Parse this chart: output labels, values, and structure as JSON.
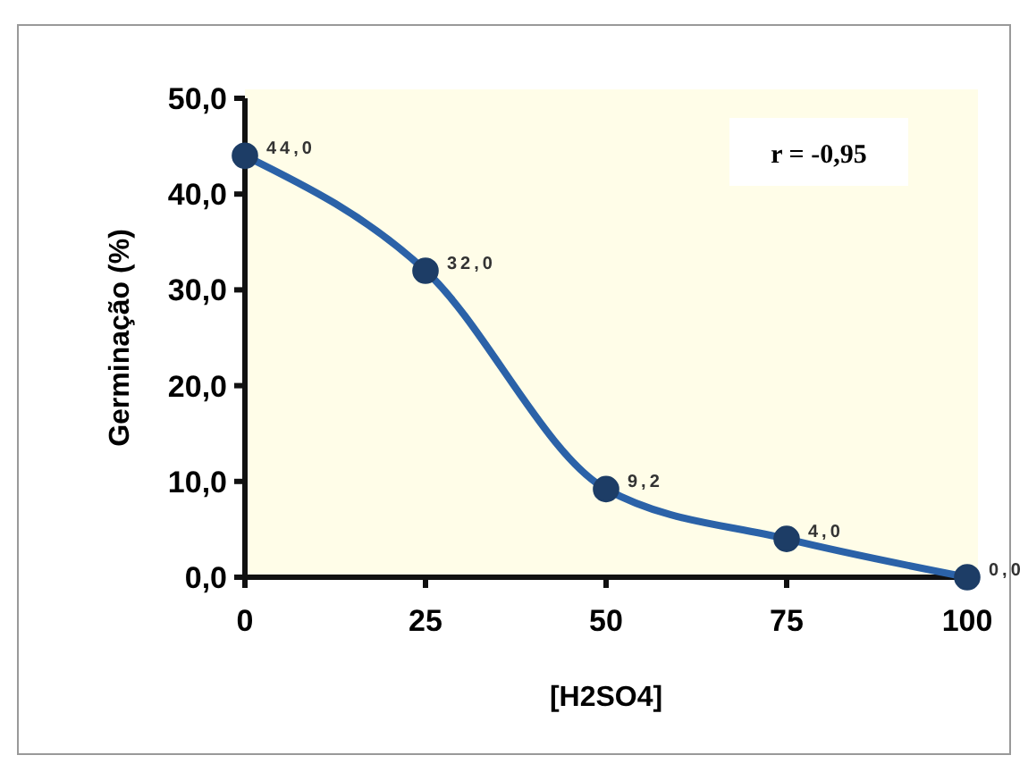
{
  "chart_data": {
    "type": "line",
    "xlabel": "[H2SO4]",
    "ylabel": "Germinação (%)",
    "x": [
      0,
      25,
      50,
      75,
      100
    ],
    "series": [
      {
        "color": "#2b62a8",
        "values": [
          44,
          32,
          9.2,
          4,
          0
        ],
        "value_labels": [
          "44,0",
          "32,0",
          "9,2",
          "4,0",
          "0,0"
        ]
      }
    ],
    "xlim": [
      0,
      100
    ],
    "xticks": [
      0,
      25,
      50,
      75,
      100
    ],
    "ylim": [
      0,
      50
    ],
    "yticks": [
      {
        "value": 0,
        "label": "0,0"
      },
      {
        "value": 10,
        "label": "10,0"
      },
      {
        "value": 20,
        "label": "20,0"
      },
      {
        "value": 30,
        "label": "30,0"
      },
      {
        "value": 40,
        "label": "40,0"
      },
      {
        "value": 50,
        "label": "50,0"
      }
    ],
    "annotations": [
      "r = -0,95"
    ],
    "marker": "circle"
  }
}
